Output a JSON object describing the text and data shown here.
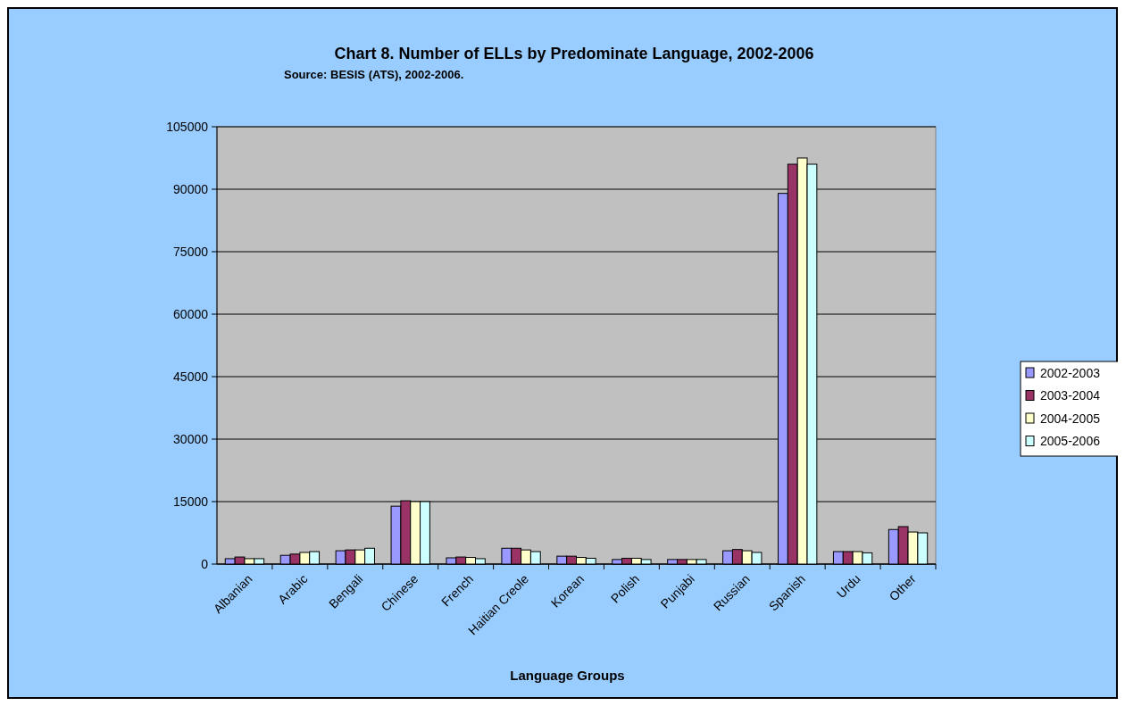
{
  "chart_data": {
    "type": "bar",
    "title": "Chart 8. Number of ELLs by Predominate Language, 2002-2006",
    "subtitle": "Source: BESIS (ATS), 2002-2006.",
    "xlabel": "Language Groups",
    "categories": [
      "Albanian",
      "Arabic",
      "Bengali",
      "Chinese",
      "French",
      "Haitian Creole",
      "Korean",
      "Polish",
      "Punjabi",
      "Russian",
      "Spanish",
      "Urdu",
      "Other"
    ],
    "series": [
      {
        "name": "2002-2003",
        "color": "#9999ff",
        "values": [
          1300,
          2100,
          3200,
          13900,
          1500,
          3800,
          1900,
          1100,
          1100,
          3200,
          89000,
          3000,
          8300
        ]
      },
      {
        "name": "2003-2004",
        "color": "#993366",
        "values": [
          1700,
          2400,
          3400,
          15200,
          1700,
          3800,
          1900,
          1400,
          1100,
          3500,
          96000,
          3000,
          9000
        ]
      },
      {
        "name": "2004-2005",
        "color": "#ffffcc",
        "values": [
          1300,
          2800,
          3400,
          15000,
          1600,
          3400,
          1600,
          1400,
          1100,
          3200,
          97500,
          3000,
          7700
        ]
      },
      {
        "name": "2005-2006",
        "color": "#ccffff",
        "values": [
          1300,
          3000,
          3800,
          15000,
          1300,
          3000,
          1400,
          1100,
          1100,
          2800,
          96000,
          2700,
          7500
        ]
      }
    ],
    "ylim": [
      0,
      105000
    ],
    "yticks": [
      0,
      15000,
      30000,
      45000,
      60000,
      75000,
      90000,
      105000
    ],
    "grid": "y",
    "legend": "right"
  }
}
